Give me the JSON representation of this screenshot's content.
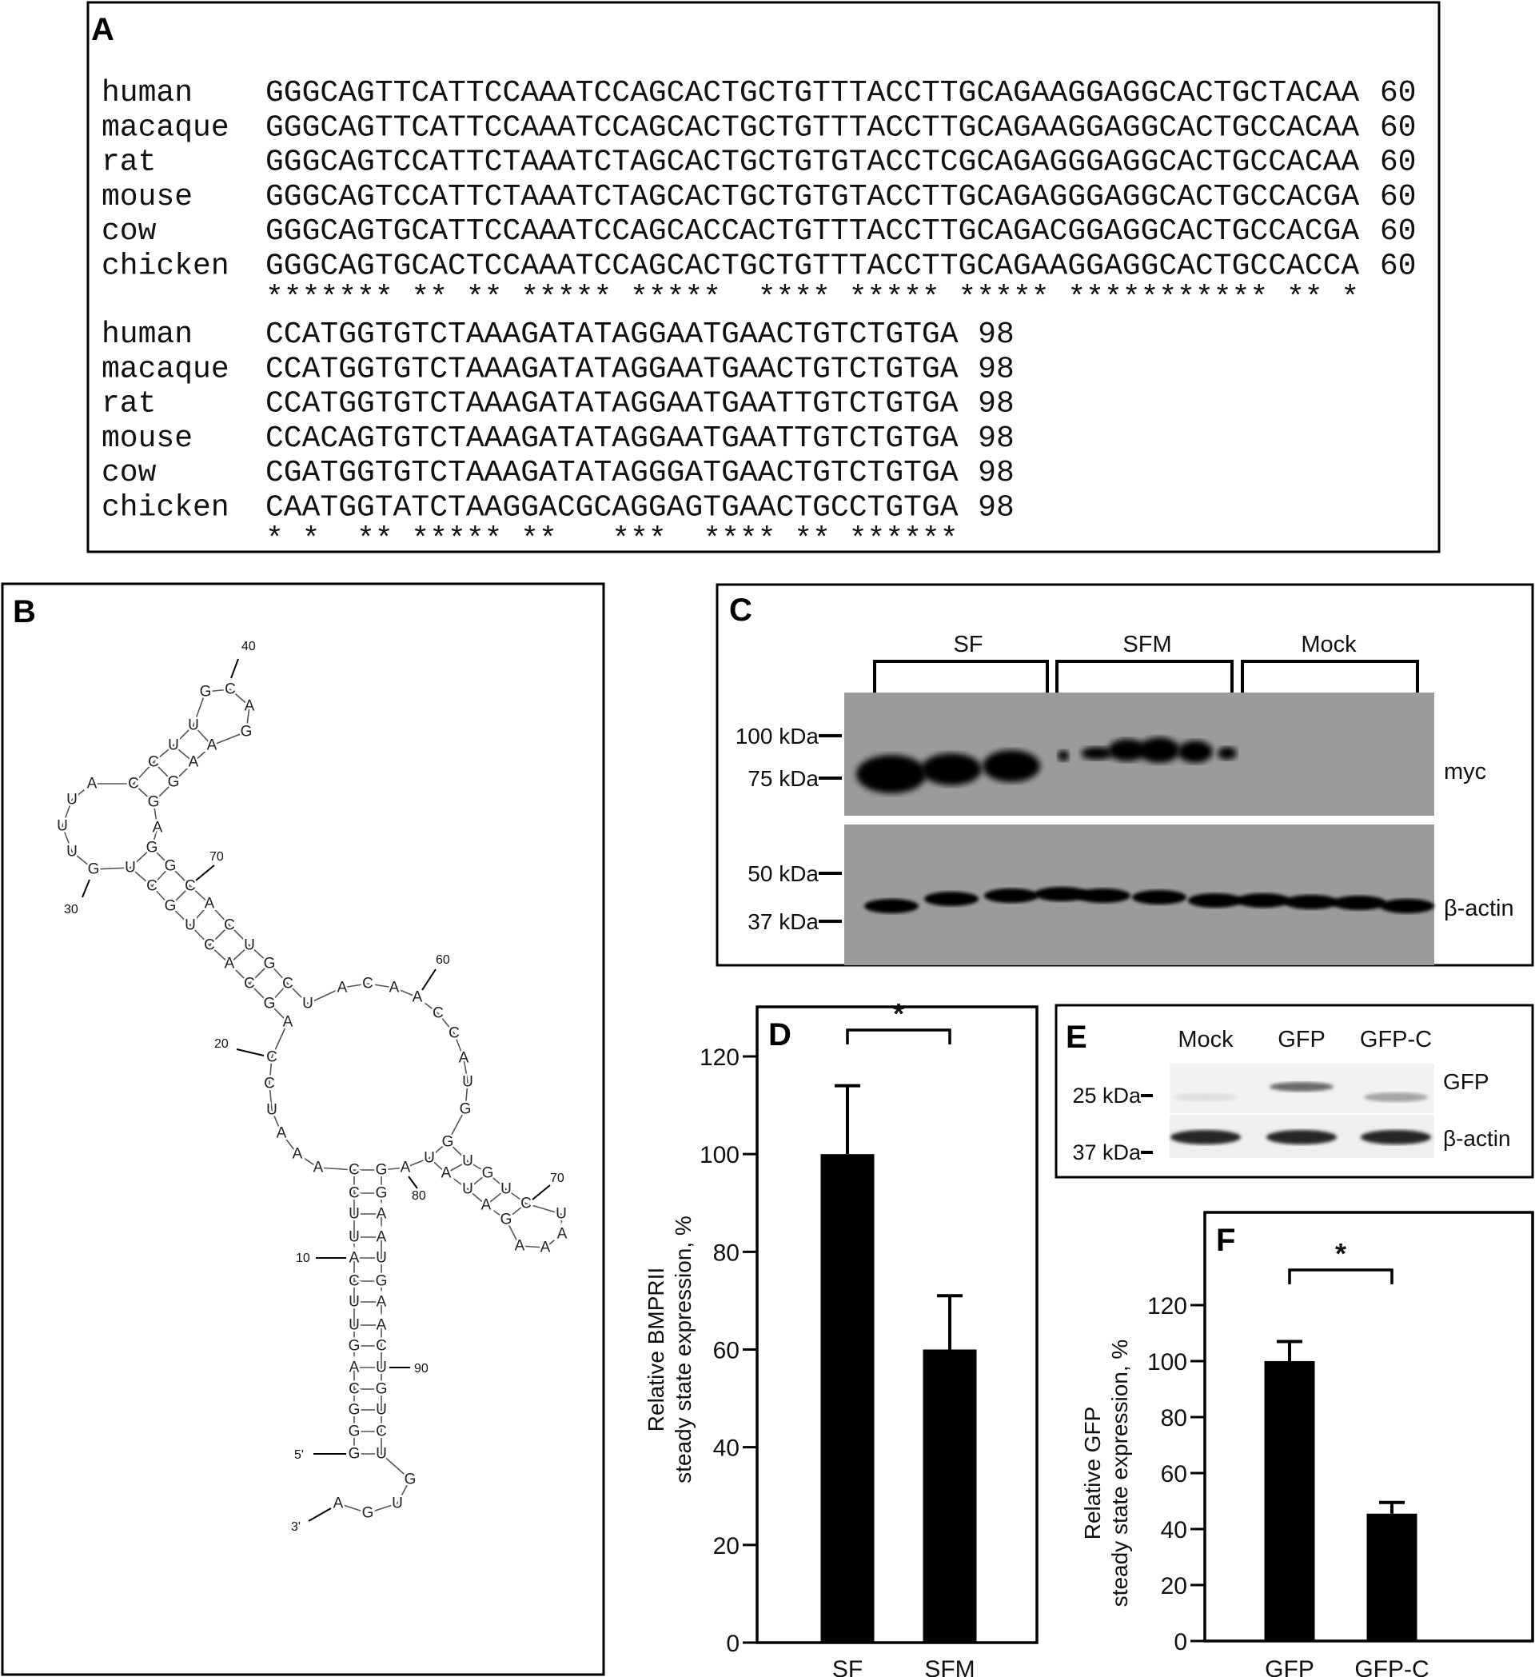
{
  "panels": {
    "A": "A",
    "B": "B",
    "C": "C",
    "D": "D",
    "E": "E",
    "F": "F"
  },
  "alignment": {
    "blocks": [
      {
        "end": "60",
        "rows": [
          {
            "name": "human",
            "seq": "GGGCAGTTCATTCCAAATCCAGCACTGCTGTTTACCTTGCAGAAGGAGGCACTGCTACAA"
          },
          {
            "name": "macaque",
            "seq": "GGGCAGTTCATTCCAAATCCAGCACTGCTGTTTACCTTGCAGAAGGAGGCACTGCCACAA"
          },
          {
            "name": "rat",
            "seq": "GGGCAGTCCATTCTAAATCTAGCACTGCTGTGTACCTCGCAGAGGGAGGCACTGCCACAA"
          },
          {
            "name": "mouse",
            "seq": "GGGCAGTCCATTCTAAATCTAGCACTGCTGTGTACCTTGCAGAGGGAGGCACTGCCACGA"
          },
          {
            "name": "cow",
            "seq": "GGGCAGTGCATTCCAAATCCAGCACCACTGTTTACCTTGCAGACGGAGGCACTGCCACGA"
          },
          {
            "name": "chicken",
            "seq": "GGGCAGTGCACTCCAAATCCAGCACTGCTGTTTACCTTGCAGAAGGAGGCACTGCCACCA"
          }
        ],
        "consensus": "******* ** ** ***** *****  **** ***** ***** *********** ** *"
      },
      {
        "end": "98",
        "rows": [
          {
            "name": "human",
            "seq": "CCATGGTGTCTAAAGATATAGGAATGAACTGTCTGTGA"
          },
          {
            "name": "macaque",
            "seq": "CCATGGTGTCTAAAGATATAGGAATGAACTGTCTGTGA"
          },
          {
            "name": "rat",
            "seq": "CCATGGTGTCTAAAGATATAGGAATGAATTGTCTGTGA"
          },
          {
            "name": "mouse",
            "seq": "CCACAGTGTCTAAAGATATAGGAATGAATTGTCTGTGA"
          },
          {
            "name": "cow",
            "seq": "CGATGGTGTCTAAAGATATAGGGATGAACTGTCTGTGA"
          },
          {
            "name": "chicken",
            "seq": "CAATGGTATCTAAGGACGCAGGAGTGAACTGCCTGTGA"
          }
        ],
        "consensus": "* *  ** ***** **   ***  **** ** ******"
      }
    ]
  },
  "structure": {
    "nucleotides": "GGGCAGUUCAUUCCAAAUCCAGCACUGCUGUUUACCUUGCAGAAGGAGGCACUGCUACAACCAUGGUGUCUAAAGAUAUAGGAAUGAACUGUCUGUGA",
    "labels": [
      "40",
      "30",
      "70",
      "60",
      "20",
      "80",
      "70",
      "10",
      "90",
      "5'",
      "3'"
    ]
  },
  "western_c": {
    "groups": [
      "SF",
      "SFM",
      "Mock"
    ],
    "markers": [
      "100 kDa",
      "75 kDa",
      "50 kDa",
      "37 kDa"
    ],
    "blots": [
      "myc",
      "β-actin"
    ]
  },
  "western_e": {
    "lanes": [
      "Mock",
      "GFP",
      "GFP-C"
    ],
    "markers": [
      "25 kDa",
      "37 kDa"
    ],
    "blots": [
      "GFP",
      "β-actin"
    ]
  },
  "chart_data": [
    {
      "panel": "D",
      "type": "bar",
      "categories": [
        "SF",
        "SFM"
      ],
      "values": [
        100,
        60
      ],
      "errors": [
        14,
        11
      ],
      "ylabel": [
        "Relative BMPRII",
        "steady state expression, %"
      ],
      "ylim": [
        0,
        120
      ],
      "yticks": [
        "0",
        "20",
        "40",
        "60",
        "80",
        "100",
        "120"
      ],
      "significance": "*",
      "bar_color": "#000000",
      "grid": false
    },
    {
      "panel": "F",
      "type": "bar",
      "categories": [
        "GFP",
        "GFP-C"
      ],
      "values": [
        100,
        45.5
      ],
      "errors": [
        7,
        4
      ],
      "ylabel": [
        "Relative GFP",
        "steady state expression, %"
      ],
      "ylim": [
        0,
        120
      ],
      "yticks": [
        "0",
        "20",
        "40",
        "60",
        "80",
        "100",
        "120"
      ],
      "significance": "*",
      "bar_color": "#000000",
      "grid": false
    }
  ]
}
